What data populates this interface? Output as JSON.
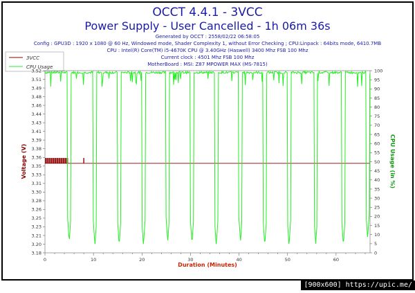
{
  "header": {
    "title": "OCCT 4.4.1 - 3VCC",
    "subtitle": "Power Supply - User Cancelled - 1h 06m 36s",
    "info_lines": [
      "Generated by OCCT : 2558/02/22 06:58:05",
      "Config : GPU3D : 1920 x 1080 @ 60 Hz, Windowed mode, Shader Complexity 1, without Error Checking ; CPU:Linpack : 64bits mode, 6410.7MB",
      "CPU : Intel(R) Core(TM) i5-4670K CPU @ 3.40GHz (Haswell) 3400 Mhz FSB 100 Mhz",
      "Current clock : 4501 Mhz FSB 100 Mhz",
      "MotherBoard : MSI: Z87 MPOWER MAX (MS-7815)"
    ]
  },
  "legend": [
    {
      "name": "3VCC",
      "color": "#8b0000"
    },
    {
      "name": "CPU Usage",
      "color": "#22ee22"
    }
  ],
  "colors": {
    "voltage": "#8b0000",
    "cpu": "#22ee22",
    "title": "#1a1aaa",
    "info": "#1a1aaa",
    "xlabel": "#cc2200",
    "ylabel_left": "#8b0000",
    "ylabel_right": "#119911"
  },
  "footer": "[900x600] https://upic.me/",
  "chart_data": {
    "type": "line",
    "xlabel": "Duration (Minutes)",
    "ylabel_left": "Voltage (V)",
    "ylabel_right": "CPU Usage (in %)",
    "xlim": [
      0,
      67
    ],
    "x_ticks": [
      0,
      10,
      20,
      30,
      40,
      50,
      60
    ],
    "ylim_left": [
      3.18,
      3.52
    ],
    "y_ticks_left": [
      "3.18",
      "3.20",
      "3.21",
      "3.23",
      "3.25",
      "3.26",
      "3.28",
      "3.30",
      "3.31",
      "3.33",
      "3.35",
      "3.36",
      "3.38",
      "3.39",
      "3.41",
      "3.43",
      "3.44",
      "3.46",
      "3.48",
      "3.49",
      "3.51",
      "3.52"
    ],
    "ylim_right": [
      0,
      100
    ],
    "y_ticks_right": [
      0,
      5,
      10,
      15,
      20,
      25,
      30,
      35,
      40,
      45,
      50,
      55,
      60,
      65,
      70,
      75,
      80,
      85,
      90,
      95,
      100
    ],
    "grid": false,
    "legend_position": "top-left",
    "series": [
      {
        "name": "3VCC",
        "axis": "left",
        "baseline": 3.347,
        "spikes": [
          {
            "x": 0.2,
            "y": 3.357
          },
          {
            "x": 0.6,
            "y": 3.357
          },
          {
            "x": 1.0,
            "y": 3.357
          },
          {
            "x": 1.4,
            "y": 3.357
          },
          {
            "x": 1.8,
            "y": 3.357
          },
          {
            "x": 2.2,
            "y": 3.357
          },
          {
            "x": 2.6,
            "y": 3.357
          },
          {
            "x": 3.0,
            "y": 3.357
          },
          {
            "x": 3.4,
            "y": 3.357
          },
          {
            "x": 3.8,
            "y": 3.357
          },
          {
            "x": 4.2,
            "y": 3.357
          },
          {
            "x": 4.6,
            "y": 3.357
          },
          {
            "x": 8.0,
            "y": 3.357
          }
        ]
      },
      {
        "name": "CPU Usage",
        "axis": "right",
        "baseline": 99,
        "dips": [
          {
            "x": 5.0,
            "y": 6
          },
          {
            "x": 10.3,
            "y": 4
          },
          {
            "x": 15.3,
            "y": 4
          },
          {
            "x": 20.3,
            "y": 4
          },
          {
            "x": 25.3,
            "y": 6
          },
          {
            "x": 30.3,
            "y": 5
          },
          {
            "x": 35.3,
            "y": 4
          },
          {
            "x": 40.3,
            "y": 6
          },
          {
            "x": 45.3,
            "y": 4
          },
          {
            "x": 50.3,
            "y": 4
          },
          {
            "x": 55.8,
            "y": 5
          },
          {
            "x": 61.5,
            "y": 4
          },
          {
            "x": 66.5,
            "y": 8
          }
        ]
      }
    ]
  }
}
